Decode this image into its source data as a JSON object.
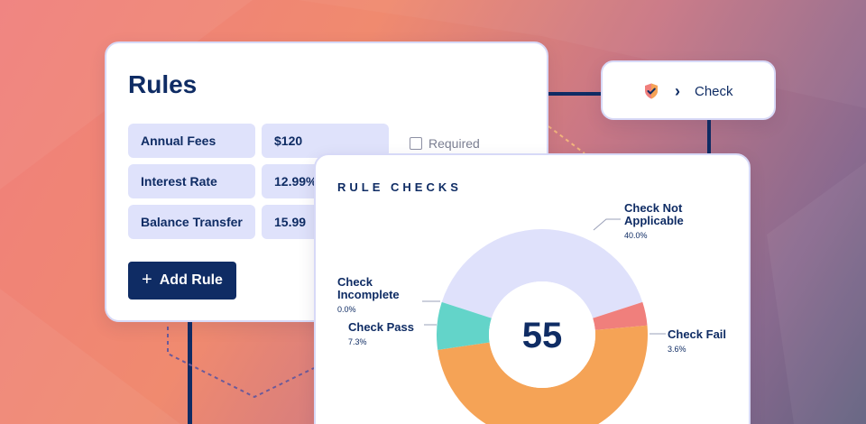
{
  "rules_card": {
    "title": "Rules",
    "rows": [
      {
        "label": "Annual Fees",
        "value": "$120"
      },
      {
        "label": "Interest Rate",
        "value": "12.99%"
      },
      {
        "label": "Balance Transfer",
        "value": "15.99"
      }
    ],
    "required_label": "Required",
    "add_button_label": "Add Rule",
    "add_button_icon": "plus-icon"
  },
  "check_card": {
    "label": "Check",
    "icons": [
      "shield-check-icon",
      "chevron-right-icon"
    ]
  },
  "rule_checks": {
    "heading": "RULE CHECKS",
    "total": "55",
    "slices": [
      {
        "name": "Check Not Applicable",
        "percent_label": "40.0%",
        "value": 40.0,
        "color": "#dfe1fb"
      },
      {
        "name": "Check Fail",
        "percent_label": "3.6%",
        "value": 3.6,
        "color": "#f07f7c"
      },
      {
        "name": "Check Pass",
        "percent_label": "7.3%",
        "value": 7.3,
        "color": "#63d4c9"
      },
      {
        "name": "Check Incomplete",
        "percent_label": "0.0%",
        "value": 0.0,
        "color": "#c9c9c9"
      }
    ],
    "unlabeled_remainder_color": "#f5a356"
  },
  "chart_data": {
    "type": "pie",
    "title": "RULE CHECKS",
    "center_label": "55",
    "categories": [
      "Check Not Applicable",
      "Check Fail",
      "Check Pass",
      "Check Incomplete"
    ],
    "values": [
      40.0,
      3.6,
      7.3,
      0.0
    ]
  },
  "colors": {
    "navy": "#0f2c64",
    "cell_fill": "#dfe2fb",
    "card_border": "#d7d9f7",
    "donut_orange": "#f5a356",
    "donut_lavender": "#dfe1fb",
    "donut_teal": "#63d4c9",
    "donut_red": "#f07f7c"
  }
}
